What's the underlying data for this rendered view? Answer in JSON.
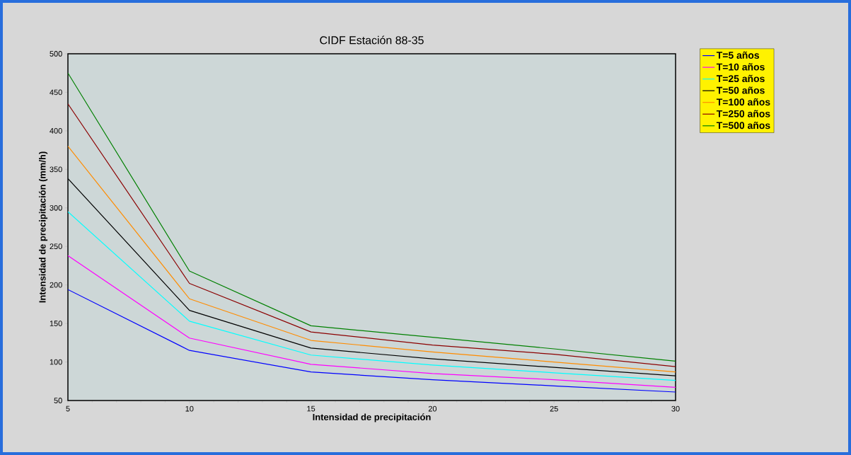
{
  "chart_data": {
    "type": "line",
    "title": "CIDF Estación 88-35",
    "xlabel": "Intensidad de precipitación",
    "ylabel": "Intensidad de precipitación (mm/h)",
    "x": [
      5,
      10,
      15,
      20,
      25,
      30
    ],
    "series": [
      {
        "name": "T=5 años",
        "color": "#0000ff",
        "values": [
          194,
          115,
          87,
          77,
          69,
          61
        ]
      },
      {
        "name": "T=10 años",
        "color": "#ff00ff",
        "values": [
          238,
          131,
          97,
          85,
          77,
          67
        ]
      },
      {
        "name": "T=25 años",
        "color": "#00ffff",
        "values": [
          295,
          153,
          109,
          96,
          86,
          76
        ]
      },
      {
        "name": "T=50 años",
        "color": "#000000",
        "values": [
          338,
          167,
          118,
          104,
          93,
          82
        ]
      },
      {
        "name": "T=100 años",
        "color": "#ff8c00",
        "values": [
          380,
          182,
          128,
          113,
          100,
          87
        ]
      },
      {
        "name": "T=250 años",
        "color": "#8b0000",
        "values": [
          435,
          202,
          139,
          122,
          110,
          94
        ]
      },
      {
        "name": "T=500 años",
        "color": "#008000",
        "values": [
          475,
          218,
          147,
          132,
          117,
          101
        ]
      }
    ],
    "xlim": [
      5,
      30
    ],
    "ylim": [
      50,
      500
    ],
    "xticks": [
      5,
      10,
      15,
      20,
      25,
      30
    ],
    "yticks": [
      50,
      100,
      150,
      200,
      250,
      300,
      350,
      400,
      450,
      500
    ],
    "grid": false,
    "legend": "top right",
    "marker": "none",
    "line_style": "solid"
  }
}
